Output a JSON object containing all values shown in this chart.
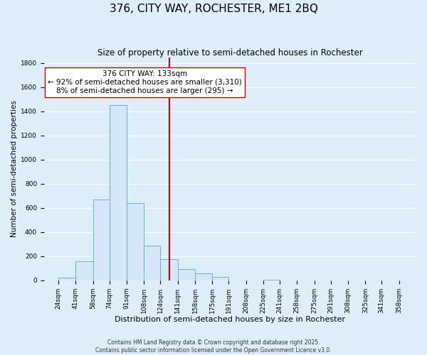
{
  "title": "376, CITY WAY, ROCHESTER, ME1 2BQ",
  "subtitle": "Size of property relative to semi-detached houses in Rochester",
  "xlabel": "Distribution of semi-detached houses by size in Rochester",
  "ylabel": "Number of semi-detached properties",
  "bar_left_edges": [
    24,
    41,
    58,
    74,
    91,
    108,
    124,
    141,
    158,
    175,
    191,
    208,
    225,
    241,
    258,
    275,
    291,
    308,
    325,
    341
  ],
  "bar_widths": [
    17,
    17,
    16,
    17,
    17,
    16,
    17,
    17,
    17,
    16,
    17,
    17,
    16,
    17,
    17,
    16,
    17,
    17,
    16,
    17
  ],
  "bar_heights": [
    20,
    160,
    670,
    1450,
    640,
    285,
    175,
    90,
    55,
    25,
    0,
    0,
    5,
    0,
    0,
    0,
    0,
    0,
    0,
    0
  ],
  "bar_facecolor": "#d6e8f7",
  "bar_edgecolor": "#6aaed6",
  "vline_x": 133,
  "vline_color": "#cc0000",
  "vline_linewidth": 1.5,
  "annotation_title": "376 CITY WAY: 133sqm",
  "annotation_line1": "← 92% of semi-detached houses are smaller (3,310)",
  "annotation_line2": "8% of semi-detached houses are larger (295) →",
  "annotation_box_color": "#ffffff",
  "annotation_box_edgecolor": "#cc0000",
  "xlim": [
    10,
    375
  ],
  "ylim": [
    0,
    1850
  ],
  "yticks": [
    0,
    200,
    400,
    600,
    800,
    1000,
    1200,
    1400,
    1600,
    1800
  ],
  "xtick_labels": [
    "24sqm",
    "41sqm",
    "58sqm",
    "74sqm",
    "91sqm",
    "108sqm",
    "124sqm",
    "141sqm",
    "158sqm",
    "175sqm",
    "191sqm",
    "208sqm",
    "225sqm",
    "241sqm",
    "258sqm",
    "275sqm",
    "291sqm",
    "308sqm",
    "325sqm",
    "341sqm",
    "358sqm"
  ],
  "xtick_positions": [
    24,
    41,
    58,
    74,
    91,
    108,
    124,
    141,
    158,
    175,
    191,
    208,
    225,
    241,
    258,
    275,
    291,
    308,
    325,
    341,
    358
  ],
  "grid_color": "#ffffff",
  "background_color": "#ddeef8",
  "footer_line1": "Contains HM Land Registry data © Crown copyright and database right 2025.",
  "footer_line2": "Contains public sector information licensed under the Open Government Licence v3.0.",
  "title_fontsize": 11,
  "subtitle_fontsize": 8.5,
  "xlabel_fontsize": 8,
  "ylabel_fontsize": 7.5,
  "tick_fontsize": 6.5,
  "footer_fontsize": 5.5,
  "annotation_fontsize": 7.5,
  "annotation_title_fontsize": 7.5
}
